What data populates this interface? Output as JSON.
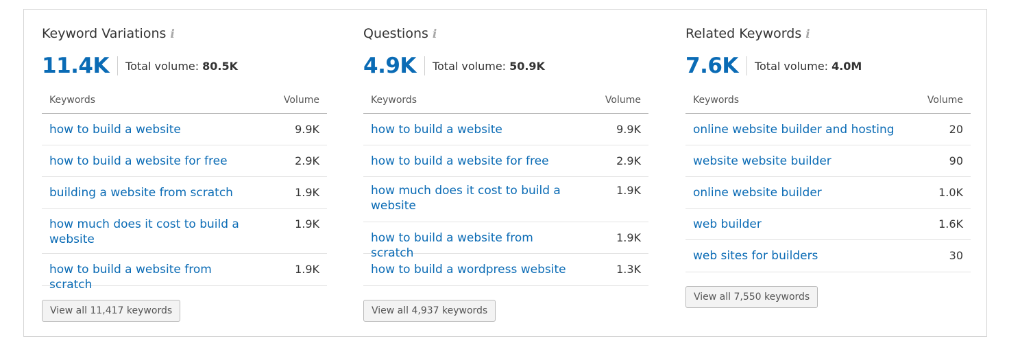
{
  "columns": [
    {
      "title": "Keyword Variations",
      "count": "11.4K",
      "total_label": "Total volume:",
      "total_value": "80.5K",
      "headers": {
        "keywords": "Keywords",
        "volume": "Volume"
      },
      "rows": [
        {
          "keyword": "how to build a website",
          "volume": "9.9K"
        },
        {
          "keyword": "how to build a website for free",
          "volume": "2.9K"
        },
        {
          "keyword": "building a website from scratch",
          "volume": "1.9K"
        },
        {
          "keyword": "how much does it cost to build a website",
          "volume": "1.9K"
        },
        {
          "keyword": "how to build a website from scratch",
          "volume": "1.9K"
        }
      ],
      "button": "View all 11,417 keywords"
    },
    {
      "title": "Questions",
      "count": "4.9K",
      "total_label": "Total volume:",
      "total_value": "50.9K",
      "headers": {
        "keywords": "Keywords",
        "volume": "Volume"
      },
      "rows": [
        {
          "keyword": "how to build a website",
          "volume": "9.9K"
        },
        {
          "keyword": "how to build a website for free",
          "volume": "2.9K"
        },
        {
          "keyword": "how much does it cost to build a website",
          "volume": "1.9K"
        },
        {
          "keyword": "how to build a website from scratch",
          "volume": "1.9K"
        },
        {
          "keyword": "how to build a wordpress website",
          "volume": "1.3K"
        }
      ],
      "button": "View all 4,937 keywords"
    },
    {
      "title": "Related Keywords",
      "count": "7.6K",
      "total_label": "Total volume:",
      "total_value": "4.0M",
      "headers": {
        "keywords": "Keywords",
        "volume": "Volume"
      },
      "rows": [
        {
          "keyword": "online website builder and hosting",
          "volume": "20"
        },
        {
          "keyword": "website website builder",
          "volume": "90"
        },
        {
          "keyword": "online website builder",
          "volume": "1.0K"
        },
        {
          "keyword": "web builder",
          "volume": "1.6K"
        },
        {
          "keyword": "web sites for builders",
          "volume": "30"
        }
      ],
      "button": "View all 7,550 keywords"
    }
  ],
  "info_icon": "info-icon",
  "colors": {
    "accent": "#0a6bb5",
    "border": "#d5d5d5"
  }
}
